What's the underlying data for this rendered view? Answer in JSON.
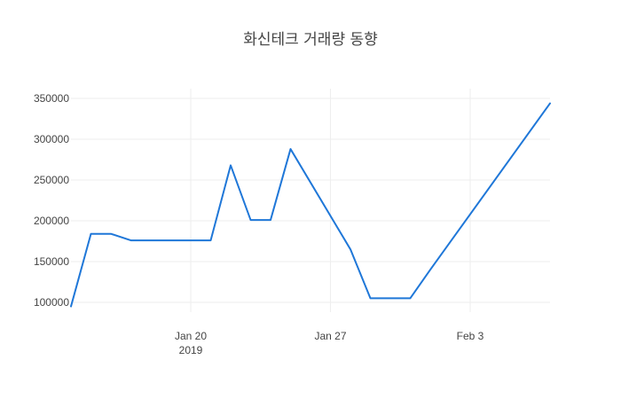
{
  "chart_data": {
    "type": "line",
    "title": "화신테크 거래량 동향",
    "xlabel": "",
    "ylabel": "",
    "x_axis": {
      "type": "date",
      "range": [
        "2019-01-14",
        "2019-02-07"
      ],
      "ticks": [
        {
          "date": "2019-01-20",
          "label": "Jan 20",
          "sublabel": "2019"
        },
        {
          "date": "2019-01-27",
          "label": "Jan 27",
          "sublabel": ""
        },
        {
          "date": "2019-02-03",
          "label": "Feb 3",
          "sublabel": ""
        }
      ]
    },
    "y_axis": {
      "range": [
        88000,
        362000
      ],
      "ticks": [
        100000,
        150000,
        200000,
        250000,
        300000,
        350000
      ]
    },
    "grid": true,
    "series": [
      {
        "name": "",
        "color": "#1f77d8",
        "points": [
          {
            "x": "2019-01-14",
            "y": 95000
          },
          {
            "x": "2019-01-15",
            "y": 184000
          },
          {
            "x": "2019-01-16",
            "y": 184000
          },
          {
            "x": "2019-01-17",
            "y": 176000
          },
          {
            "x": "2019-01-18",
            "y": 176000
          },
          {
            "x": "2019-01-19",
            "y": 176000
          },
          {
            "x": "2019-01-20",
            "y": 176000
          },
          {
            "x": "2019-01-21",
            "y": 176000
          },
          {
            "x": "2019-01-22",
            "y": 268000
          },
          {
            "x": "2019-01-23",
            "y": 201000
          },
          {
            "x": "2019-01-24",
            "y": 201000
          },
          {
            "x": "2019-01-25",
            "y": 288000
          },
          {
            "x": "2019-01-28",
            "y": 165000
          },
          {
            "x": "2019-01-29",
            "y": 105000
          },
          {
            "x": "2019-01-30",
            "y": 105000
          },
          {
            "x": "2019-01-31",
            "y": 105000
          },
          {
            "x": "2019-02-01",
            "y": 140000
          },
          {
            "x": "2019-02-07",
            "y": 344000
          }
        ]
      }
    ]
  }
}
